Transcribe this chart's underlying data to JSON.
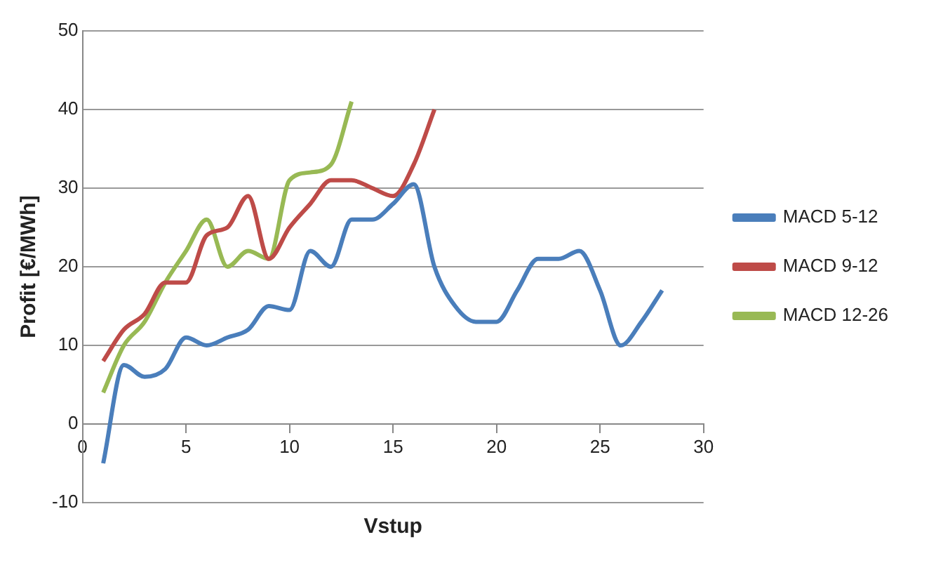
{
  "chart_data": {
    "type": "line",
    "xlabel": "Vstup",
    "ylabel": "Profit [€/MWh]",
    "xlim": [
      0,
      30
    ],
    "xticks": [
      0,
      5,
      10,
      15,
      20,
      25,
      30
    ],
    "ylim": [
      -10,
      50
    ],
    "yticks": [
      -10,
      0,
      10,
      20,
      30,
      40,
      50
    ],
    "grid": "y",
    "legend": "right",
    "marker": "none",
    "line_style": "solid",
    "series": [
      {
        "name": "MACD 5-12",
        "color": "#4a7ebb",
        "x": [
          1,
          2,
          3,
          4,
          5,
          6,
          7,
          8,
          9,
          10,
          11,
          12,
          13,
          14,
          15,
          16,
          17,
          18,
          19,
          20,
          21,
          22,
          23,
          24,
          25,
          26,
          27,
          28
        ],
        "values": [
          -5,
          7.5,
          6,
          7,
          11,
          10,
          11,
          12,
          15,
          14.5,
          22,
          20,
          26,
          26,
          28,
          30.5,
          20,
          15,
          13,
          13,
          17,
          21,
          21,
          22,
          17,
          10,
          13,
          17
        ]
      },
      {
        "name": "MACD 9-12",
        "color": "#be4b48",
        "x": [
          1,
          2,
          3,
          4,
          5,
          6,
          7,
          8,
          9,
          10,
          11,
          12,
          13,
          14,
          15,
          16,
          17
        ],
        "values": [
          8,
          12,
          14,
          18,
          18,
          24,
          25,
          29,
          21,
          25,
          28,
          31,
          31,
          30,
          29,
          33,
          40
        ]
      },
      {
        "name": "MACD 12-26",
        "color": "#98b954",
        "x": [
          1,
          2,
          3,
          4,
          5,
          6,
          7,
          8,
          9,
          10,
          11,
          12,
          13
        ],
        "values": [
          4,
          10,
          13,
          18,
          22,
          26,
          20,
          22,
          21,
          31,
          32,
          33,
          41
        ]
      }
    ]
  }
}
